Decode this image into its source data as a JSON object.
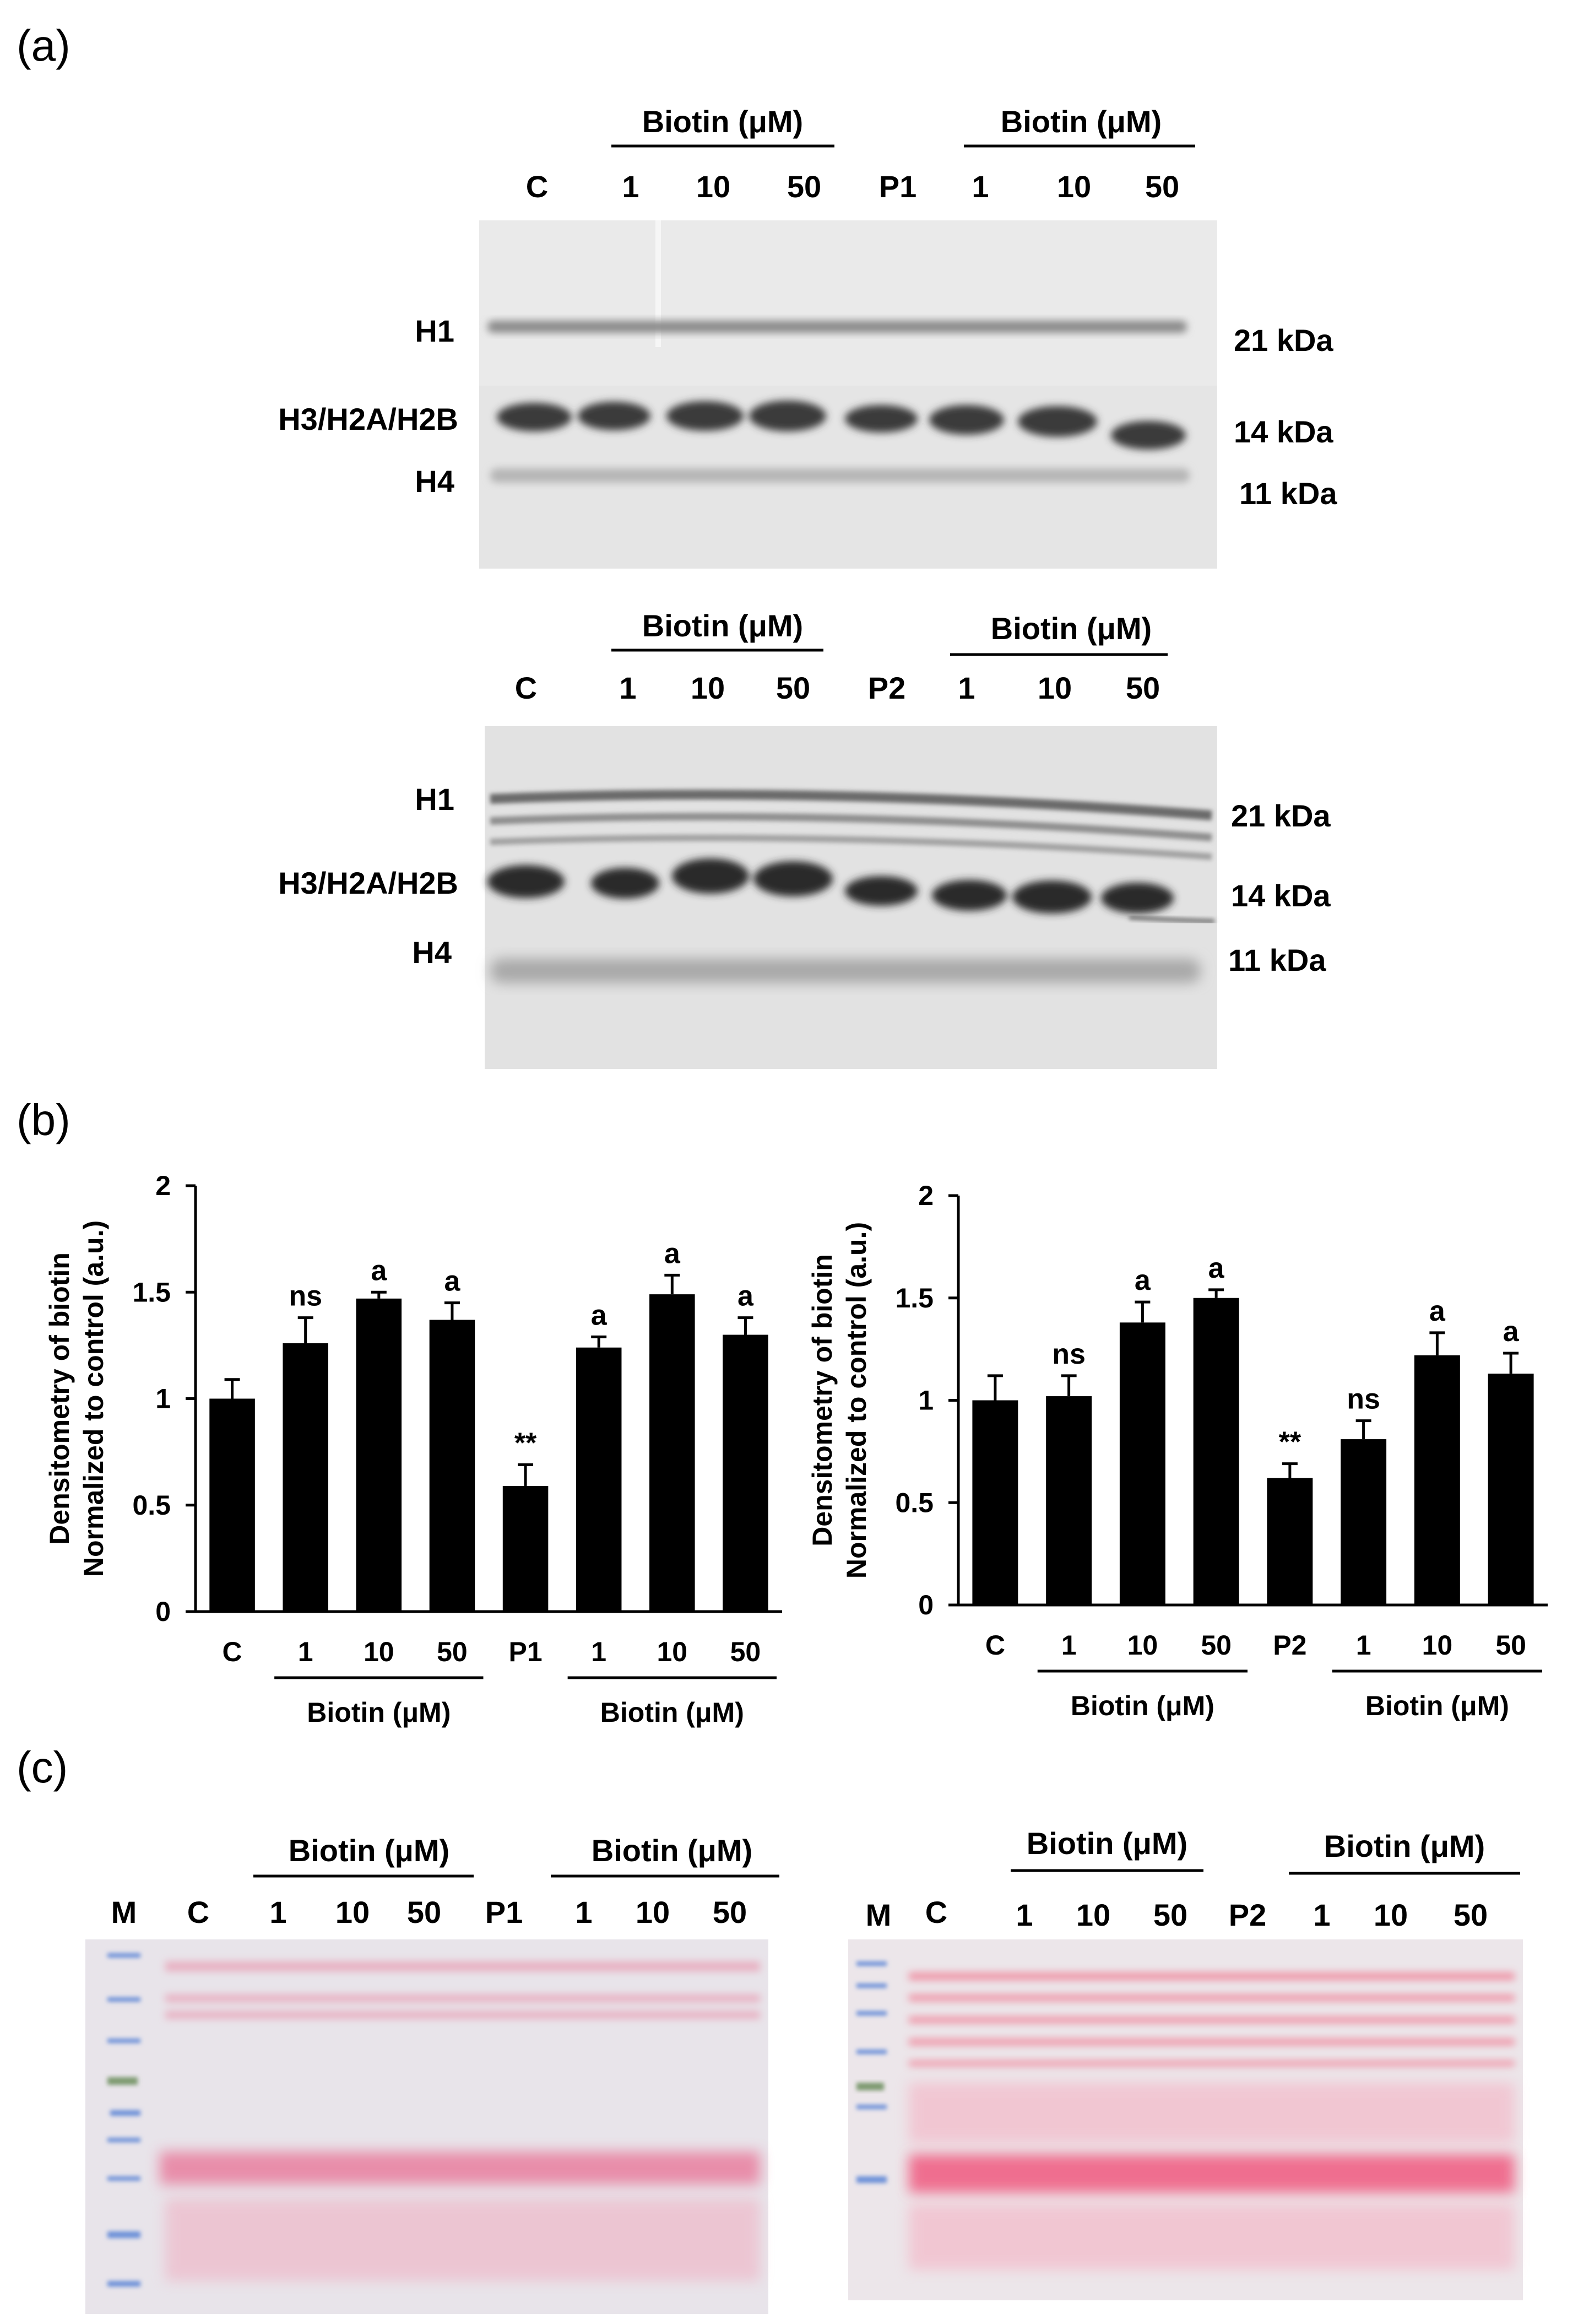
{
  "panel_a": {
    "label": "(a)",
    "blot1": {
      "group_label_left": "Biotin (μM)",
      "group_label_right": "Biotin (μM)",
      "lanes": [
        "C",
        "1",
        "10",
        "50",
        "P1",
        "1",
        "10",
        "50"
      ],
      "bands": [
        "H1",
        "H3/H2A/H2B",
        "H4"
      ],
      "markers": [
        "21 kDa",
        "14 kDa",
        "11 kDa"
      ]
    },
    "blot2": {
      "group_label_left": "Biotin (μM)",
      "group_label_right": "Biotin (μM)",
      "lanes": [
        "C",
        "1",
        "10",
        "50",
        "P2",
        "1",
        "10",
        "50"
      ],
      "bands": [
        "H1",
        "H3/H2A/H2B",
        "H4"
      ],
      "markers": [
        "21 kDa",
        "14 kDa",
        "11 kDa"
      ]
    }
  },
  "panel_b": {
    "label": "(b)"
  },
  "panel_c": {
    "label": "(c)",
    "gel1": {
      "group_label_left": "Biotin (μM)",
      "group_label_right": "Biotin (μM)",
      "lanes": [
        "M",
        "C",
        "1",
        "10",
        "50",
        "P1",
        "1",
        "10",
        "50"
      ]
    },
    "gel2": {
      "group_label_left": "Biotin (μM)",
      "group_label_right": "Biotin (μM)",
      "lanes": [
        "M",
        "C",
        "1",
        "10",
        "50",
        "P2",
        "1",
        "10",
        "50"
      ]
    }
  },
  "chart_data": [
    {
      "type": "bar",
      "categories": [
        "C",
        "1",
        "10",
        "50",
        "P1",
        "1",
        "10",
        "50"
      ],
      "values": [
        1.0,
        1.26,
        1.47,
        1.37,
        0.59,
        1.24,
        1.49,
        1.3
      ],
      "errors": [
        0.09,
        0.12,
        0.03,
        0.08,
        0.1,
        0.05,
        0.09,
        0.08
      ],
      "significance": [
        "",
        "ns",
        "a",
        "a",
        "**",
        "a",
        "a",
        "a"
      ],
      "ylabel_line1": "Densitometry of biotin",
      "ylabel_line2": "Normalized to control (a.u.)",
      "yticks": [
        "0",
        "0.5",
        "1",
        "1.5",
        "2"
      ],
      "ylim": [
        0,
        2
      ],
      "group_labels": [
        "Biotin (μM)",
        "Biotin (μM)"
      ],
      "bar_color": "#000000",
      "grid": false
    },
    {
      "type": "bar",
      "categories": [
        "C",
        "1",
        "10",
        "50",
        "P2",
        "1",
        "10",
        "50"
      ],
      "values": [
        1.0,
        1.02,
        1.38,
        1.5,
        0.62,
        0.81,
        1.22,
        1.13
      ],
      "errors": [
        0.12,
        0.1,
        0.1,
        0.04,
        0.07,
        0.09,
        0.11,
        0.1
      ],
      "significance": [
        "",
        "ns",
        "a",
        "a",
        "**",
        "ns",
        "a",
        "a"
      ],
      "ylabel_line1": "Densitometry of biotin",
      "ylabel_line2": "Normalized to control (a.u.)",
      "yticks": [
        "0",
        "0.5",
        "1",
        "1.5",
        "2"
      ],
      "ylim": [
        0,
        2
      ],
      "group_labels": [
        "Biotin (μM)",
        "Biotin (μM)"
      ],
      "bar_color": "#000000",
      "grid": false
    }
  ]
}
